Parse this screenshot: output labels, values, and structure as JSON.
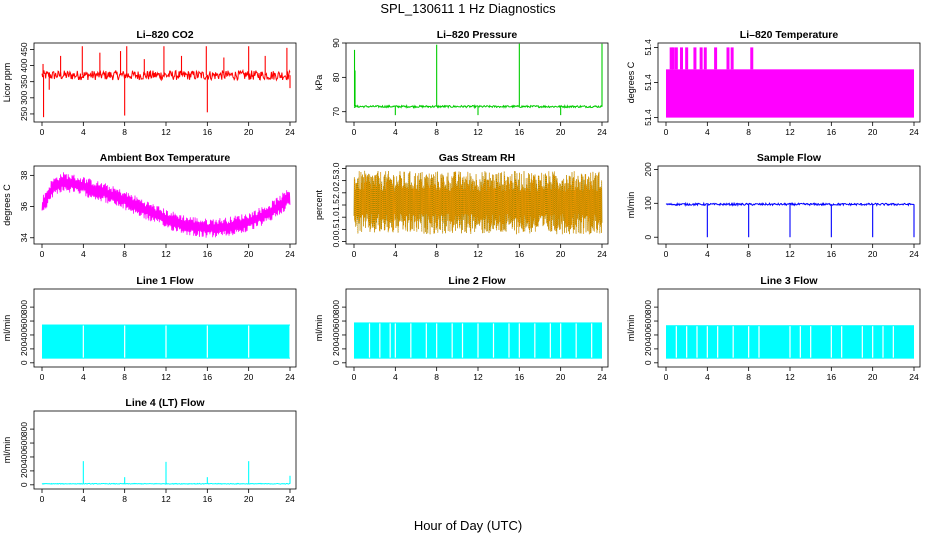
{
  "page": {
    "title": "SPL_130611  1 Hz Diagnostics",
    "xlabel": "Hour of Day (UTC)"
  },
  "chart_data": [
    {
      "type": "line",
      "title": "Li–820 CO2",
      "ylabel": "Licor ppm",
      "color": "#ff0000",
      "xlim": [
        0,
        24
      ],
      "ylim": [
        225,
        470
      ],
      "yticks": [
        250,
        300,
        350,
        400,
        450
      ],
      "xticks": [
        0,
        4,
        8,
        12,
        16,
        20,
        24
      ],
      "baseline": 370,
      "band": [
        355,
        385
      ],
      "spikes": [
        {
          "x": 0.1,
          "y": 405
        },
        {
          "x": 0.15,
          "y": 240
        },
        {
          "x": 0.7,
          "y": 325
        },
        {
          "x": 1.8,
          "y": 430
        },
        {
          "x": 3.9,
          "y": 460
        },
        {
          "x": 5.6,
          "y": 440
        },
        {
          "x": 7.6,
          "y": 445
        },
        {
          "x": 8.0,
          "y": 245
        },
        {
          "x": 8.2,
          "y": 460
        },
        {
          "x": 9.9,
          "y": 420
        },
        {
          "x": 11.8,
          "y": 460
        },
        {
          "x": 13.5,
          "y": 430
        },
        {
          "x": 15.9,
          "y": 460
        },
        {
          "x": 16.0,
          "y": 255
        },
        {
          "x": 17.6,
          "y": 425
        },
        {
          "x": 20.0,
          "y": 460
        },
        {
          "x": 21.6,
          "y": 430
        },
        {
          "x": 23.7,
          "y": 455
        },
        {
          "x": 24.0,
          "y": 330
        }
      ]
    },
    {
      "type": "line",
      "title": "Li–820 Pressure",
      "ylabel": "kPa",
      "color": "#00cc00",
      "xlim": [
        0,
        24
      ],
      "ylim": [
        67,
        90
      ],
      "yticks": [
        70,
        80,
        90
      ],
      "xticks": [
        0,
        4,
        8,
        12,
        16,
        20,
        24
      ],
      "baseline": 71.5,
      "band": [
        71.2,
        71.8
      ],
      "spikes": [
        {
          "x": 0.05,
          "y": 88
        },
        {
          "x": 0.1,
          "y": 82
        },
        {
          "x": 4.0,
          "y": 69
        },
        {
          "x": 8.0,
          "y": 89.5
        },
        {
          "x": 12.0,
          "y": 69
        },
        {
          "x": 16.0,
          "y": 89.8
        },
        {
          "x": 20.0,
          "y": 69
        },
        {
          "x": 24.0,
          "y": 89.8
        }
      ]
    },
    {
      "type": "area",
      "title": "Li–820 Temperature",
      "ylabel": "degrees C",
      "color": "#ff00ff",
      "xlim": [
        0,
        24
      ],
      "ylim": [
        51.355,
        51.445
      ],
      "yticks": [
        51.36,
        51.4,
        51.44
      ],
      "xticks": [
        0,
        4,
        8,
        12,
        16,
        20,
        24
      ],
      "baseline": 51.36,
      "band": [
        51.36,
        51.415
      ],
      "spikes": [
        {
          "x": 0.5,
          "y": 51.44
        },
        {
          "x": 0.7,
          "y": 51.44
        },
        {
          "x": 1.0,
          "y": 51.44
        },
        {
          "x": 1.5,
          "y": 51.44
        },
        {
          "x": 2.0,
          "y": 51.44
        },
        {
          "x": 2.8,
          "y": 51.44
        },
        {
          "x": 3.4,
          "y": 51.44
        },
        {
          "x": 3.8,
          "y": 51.44
        },
        {
          "x": 4.8,
          "y": 51.44
        },
        {
          "x": 6.0,
          "y": 51.44
        },
        {
          "x": 6.4,
          "y": 51.44
        },
        {
          "x": 8.3,
          "y": 51.44
        }
      ]
    },
    {
      "type": "line",
      "title": "Ambient Box Temperature",
      "ylabel": "degrees C",
      "color": "#ff00ff",
      "xlim": [
        0,
        24
      ],
      "ylim": [
        33.6,
        38.6
      ],
      "yticks": [
        34,
        36,
        38
      ],
      "xticks": [
        0,
        4,
        8,
        12,
        16,
        20,
        24
      ],
      "curve": [
        {
          "x": 0,
          "y": 36.0
        },
        {
          "x": 1,
          "y": 37.2
        },
        {
          "x": 2,
          "y": 37.6
        },
        {
          "x": 4,
          "y": 37.3
        },
        {
          "x": 6,
          "y": 36.9
        },
        {
          "x": 8,
          "y": 36.4
        },
        {
          "x": 10,
          "y": 35.8
        },
        {
          "x": 12,
          "y": 35.2
        },
        {
          "x": 14,
          "y": 34.8
        },
        {
          "x": 16,
          "y": 34.6
        },
        {
          "x": 18,
          "y": 34.7
        },
        {
          "x": 20,
          "y": 35.0
        },
        {
          "x": 22,
          "y": 35.6
        },
        {
          "x": 24,
          "y": 36.6
        }
      ],
      "noise": 0.9
    },
    {
      "type": "line",
      "title": "Gas Stream RH",
      "ylabel": "percent",
      "color": "#ff9900",
      "color2": "#808000",
      "xlim": [
        0,
        24
      ],
      "ylim": [
        -0.1,
        3.1
      ],
      "yticks": [
        0.0,
        0.5,
        1.0,
        1.5,
        2.0,
        2.5,
        3.0
      ],
      "xticks": [
        0,
        4,
        8,
        12,
        16,
        20,
        24
      ],
      "baseline": 1.6,
      "band": [
        0.1,
        2.9
      ]
    },
    {
      "type": "line",
      "title": "Sample Flow",
      "ylabel": "ml/min",
      "color": "#0000ff",
      "xlim": [
        0,
        24
      ],
      "ylim": [
        -20,
        210
      ],
      "yticks": [
        0,
        100,
        200
      ],
      "xticks": [
        0,
        4,
        8,
        12,
        16,
        20,
        24
      ],
      "baseline": 97,
      "band": [
        94,
        100
      ],
      "spikes": [
        {
          "x": 4.0,
          "y": 0
        },
        {
          "x": 8.0,
          "y": 0
        },
        {
          "x": 12.0,
          "y": 0
        },
        {
          "x": 16.0,
          "y": 0
        },
        {
          "x": 20.0,
          "y": 0
        },
        {
          "x": 24.0,
          "y": 0
        }
      ]
    },
    {
      "type": "area",
      "title": "Line 1 Flow",
      "ylabel": "ml/min",
      "color": "#00ffff",
      "xlim": [
        0,
        24
      ],
      "ylim": [
        -60,
        1060
      ],
      "yticks": [
        0,
        200,
        400,
        600,
        800
      ],
      "xticks": [
        0,
        4,
        8,
        12,
        16,
        20,
        24
      ],
      "band": [
        60,
        550
      ],
      "gaps": [
        4.0,
        8.0,
        12.0,
        16.0,
        20.0,
        24.0
      ]
    },
    {
      "type": "area",
      "title": "Line 2 Flow",
      "ylabel": "ml/min",
      "color": "#00ffff",
      "xlim": [
        0,
        24
      ],
      "ylim": [
        -60,
        1060
      ],
      "yticks": [
        0,
        200,
        400,
        600,
        800
      ],
      "xticks": [
        0,
        4,
        8,
        12,
        16,
        20,
        24
      ],
      "band": [
        60,
        580
      ],
      "gaps": [
        1.5,
        2.5,
        3.5,
        4.0,
        5.5,
        7.0,
        8.0,
        9.5,
        10.5,
        12.0,
        13.5,
        15.0,
        16.0,
        17.5,
        19.0,
        20.0,
        21.5,
        23.0
      ]
    },
    {
      "type": "area",
      "title": "Line 3 Flow",
      "ylabel": "ml/min",
      "color": "#00ffff",
      "xlim": [
        0,
        24
      ],
      "ylim": [
        -60,
        1060
      ],
      "yticks": [
        0,
        200,
        400,
        600,
        800
      ],
      "xticks": [
        0,
        4,
        8,
        12,
        16,
        20,
        24
      ],
      "band": [
        60,
        540
      ],
      "gaps": [
        1.0,
        2.0,
        3.0,
        4.0,
        5.0,
        6.5,
        8.0,
        9.0,
        12.0,
        13.0,
        14.0,
        16.0,
        17.0,
        19.0,
        20.0,
        21.0,
        22.0
      ]
    },
    {
      "type": "line",
      "title": "Line 4 (LT) Flow",
      "ylabel": "ml/min",
      "color": "#00ffff",
      "xlim": [
        0,
        24
      ],
      "ylim": [
        -60,
        1060
      ],
      "yticks": [
        0,
        200,
        400,
        600,
        800
      ],
      "xticks": [
        0,
        4,
        8,
        12,
        16,
        20,
        24
      ],
      "baseline": 15,
      "band": [
        10,
        20
      ],
      "spikes": [
        {
          "x": 4.0,
          "y": 340
        },
        {
          "x": 8.0,
          "y": 110
        },
        {
          "x": 12.0,
          "y": 330
        },
        {
          "x": 16.0,
          "y": 110
        },
        {
          "x": 20.0,
          "y": 340
        },
        {
          "x": 24.0,
          "y": 130
        }
      ]
    }
  ]
}
